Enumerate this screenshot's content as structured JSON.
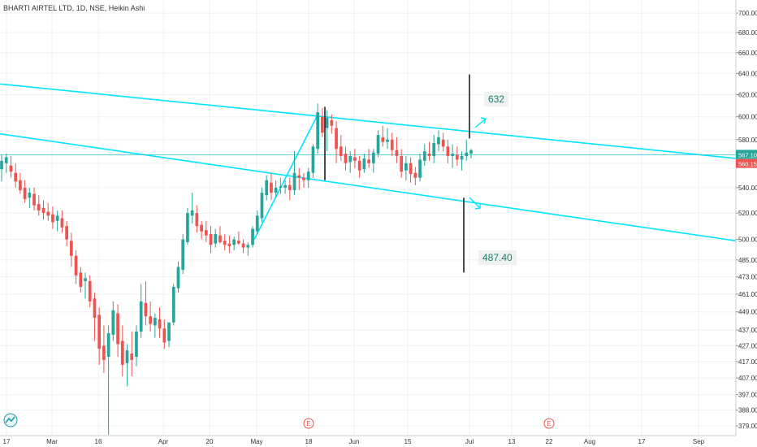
{
  "title": "BHARTI AIRTEL LTD, 1D, NSE, Heikin Ashi",
  "colors": {
    "up": "#26a69a",
    "down": "#ef5350",
    "channel": "#00e5ff",
    "price_line": "#26c6da",
    "marker": "#000000",
    "annotation_text": "#1c7d6b",
    "annotation_bg": "#eef2f0",
    "grid": "#eef1f4",
    "axis_text": "#333333",
    "price_badge": "#26a69a",
    "price_badge2": "#ef5350",
    "event_marker": "#ef5350"
  },
  "chart_data": {
    "type": "candlestick",
    "style": "Heikin Ashi",
    "title": "BHARTI AIRTEL LTD, 1D, NSE, Heikin Ashi",
    "y_ticks": [
      "700.00",
      "680.00",
      "660.00",
      "640.00",
      "620.00",
      "600.00",
      "580.00",
      "560.00",
      "540.00",
      "520.00",
      "500.00",
      "485.00",
      "473.00",
      "461.00",
      "449.00",
      "437.00",
      "427.00",
      "417.00",
      "407.00",
      "397.00",
      "388.00",
      "379.00"
    ],
    "y_scale": "log",
    "y_range": [
      374,
      712
    ],
    "x_ticks": [
      "17",
      "Mar",
      "16",
      "Apr",
      "20",
      "May",
      "18",
      "Jun",
      "15",
      "Jul",
      "13",
      "22",
      "Aug",
      "17",
      "Sep"
    ],
    "grid": true,
    "last_price": "567.10",
    "second_price": "560.15",
    "annotations": [
      {
        "text": "632",
        "type": "target-up"
      },
      {
        "text": "487.40",
        "type": "target-down"
      }
    ],
    "event_markers": [
      "E",
      "E"
    ],
    "channel": {
      "upper_line": {
        "start": [
          "start",
          630
        ],
        "end": [
          "end",
          564
        ]
      },
      "lower_line": {
        "start": [
          "start",
          585
        ],
        "end": [
          "end",
          499
        ]
      }
    },
    "candles": [
      {
        "o": 555,
        "h": 567,
        "l": 545,
        "c": 562
      },
      {
        "o": 560,
        "h": 568,
        "l": 552,
        "c": 565
      },
      {
        "o": 558,
        "h": 566,
        "l": 548,
        "c": 553
      },
      {
        "o": 552,
        "h": 560,
        "l": 540,
        "c": 545
      },
      {
        "o": 546,
        "h": 552,
        "l": 535,
        "c": 538
      },
      {
        "o": 540,
        "h": 546,
        "l": 528,
        "c": 531
      },
      {
        "o": 532,
        "h": 540,
        "l": 524,
        "c": 536
      },
      {
        "o": 535,
        "h": 540,
        "l": 522,
        "c": 526
      },
      {
        "o": 527,
        "h": 534,
        "l": 518,
        "c": 522
      },
      {
        "o": 524,
        "h": 530,
        "l": 515,
        "c": 520
      },
      {
        "o": 521,
        "h": 528,
        "l": 514,
        "c": 518
      },
      {
        "o": 519,
        "h": 525,
        "l": 508,
        "c": 513
      },
      {
        "o": 514,
        "h": 522,
        "l": 506,
        "c": 518
      },
      {
        "o": 516,
        "h": 522,
        "l": 505,
        "c": 509
      },
      {
        "o": 510,
        "h": 514,
        "l": 495,
        "c": 500
      },
      {
        "o": 499,
        "h": 505,
        "l": 480,
        "c": 488
      },
      {
        "o": 488,
        "h": 492,
        "l": 468,
        "c": 474
      },
      {
        "o": 476,
        "h": 480,
        "l": 462,
        "c": 466
      },
      {
        "o": 470,
        "h": 476,
        "l": 458,
        "c": 472
      },
      {
        "o": 470,
        "h": 474,
        "l": 452,
        "c": 456
      },
      {
        "o": 458,
        "h": 462,
        "l": 430,
        "c": 445
      },
      {
        "o": 447,
        "h": 452,
        "l": 415,
        "c": 425
      },
      {
        "o": 427,
        "h": 440,
        "l": 410,
        "c": 418
      },
      {
        "o": 420,
        "h": 440,
        "l": 374,
        "c": 435
      },
      {
        "o": 434,
        "h": 456,
        "l": 430,
        "c": 450
      },
      {
        "o": 448,
        "h": 454,
        "l": 420,
        "c": 428
      },
      {
        "o": 430,
        "h": 440,
        "l": 408,
        "c": 415
      },
      {
        "o": 416,
        "h": 428,
        "l": 402,
        "c": 424
      },
      {
        "o": 422,
        "h": 436,
        "l": 408,
        "c": 418
      },
      {
        "o": 420,
        "h": 440,
        "l": 414,
        "c": 436
      },
      {
        "o": 436,
        "h": 468,
        "l": 432,
        "c": 456
      },
      {
        "o": 455,
        "h": 470,
        "l": 440,
        "c": 446
      },
      {
        "o": 446,
        "h": 456,
        "l": 436,
        "c": 441
      },
      {
        "o": 440,
        "h": 448,
        "l": 432,
        "c": 445
      },
      {
        "o": 444,
        "h": 452,
        "l": 432,
        "c": 438
      },
      {
        "o": 438,
        "h": 444,
        "l": 425,
        "c": 429
      },
      {
        "o": 430,
        "h": 442,
        "l": 426,
        "c": 442
      },
      {
        "o": 442,
        "h": 468,
        "l": 440,
        "c": 466
      },
      {
        "o": 465,
        "h": 484,
        "l": 462,
        "c": 480
      },
      {
        "o": 478,
        "h": 504,
        "l": 475,
        "c": 500
      },
      {
        "o": 498,
        "h": 524,
        "l": 496,
        "c": 520
      },
      {
        "o": 518,
        "h": 536,
        "l": 512,
        "c": 522
      },
      {
        "o": 520,
        "h": 526,
        "l": 505,
        "c": 510
      },
      {
        "o": 511,
        "h": 514,
        "l": 500,
        "c": 506
      },
      {
        "o": 507,
        "h": 514,
        "l": 498,
        "c": 503
      },
      {
        "o": 504,
        "h": 510,
        "l": 490,
        "c": 496
      },
      {
        "o": 497,
        "h": 508,
        "l": 494,
        "c": 504
      },
      {
        "o": 503,
        "h": 510,
        "l": 497,
        "c": 498
      },
      {
        "o": 499,
        "h": 504,
        "l": 492,
        "c": 496
      },
      {
        "o": 497,
        "h": 503,
        "l": 490,
        "c": 495
      },
      {
        "o": 496,
        "h": 502,
        "l": 492,
        "c": 500
      },
      {
        "o": 499,
        "h": 506,
        "l": 496,
        "c": 497
      },
      {
        "o": 497,
        "h": 500,
        "l": 490,
        "c": 494
      },
      {
        "o": 494,
        "h": 498,
        "l": 488,
        "c": 496
      },
      {
        "o": 496,
        "h": 510,
        "l": 494,
        "c": 508
      },
      {
        "o": 506,
        "h": 522,
        "l": 504,
        "c": 518
      },
      {
        "o": 516,
        "h": 540,
        "l": 513,
        "c": 536
      },
      {
        "o": 534,
        "h": 550,
        "l": 530,
        "c": 546
      },
      {
        "o": 544,
        "h": 552,
        "l": 530,
        "c": 536
      },
      {
        "o": 536,
        "h": 546,
        "l": 532,
        "c": 540
      },
      {
        "o": 540,
        "h": 548,
        "l": 535,
        "c": 541
      },
      {
        "o": 540,
        "h": 546,
        "l": 535,
        "c": 542
      },
      {
        "o": 542,
        "h": 548,
        "l": 530,
        "c": 538
      },
      {
        "o": 538,
        "h": 570,
        "l": 534,
        "c": 552
      },
      {
        "o": 550,
        "h": 556,
        "l": 538,
        "c": 548
      },
      {
        "o": 548,
        "h": 552,
        "l": 540,
        "c": 546
      },
      {
        "o": 546,
        "h": 556,
        "l": 540,
        "c": 553
      },
      {
        "o": 552,
        "h": 576,
        "l": 548,
        "c": 574
      },
      {
        "o": 572,
        "h": 612,
        "l": 568,
        "c": 604
      },
      {
        "o": 600,
        "h": 608,
        "l": 582,
        "c": 586
      },
      {
        "o": 590,
        "h": 606,
        "l": 570,
        "c": 599
      },
      {
        "o": 597,
        "h": 602,
        "l": 585,
        "c": 592
      },
      {
        "o": 590,
        "h": 596,
        "l": 560,
        "c": 572
      },
      {
        "o": 574,
        "h": 584,
        "l": 562,
        "c": 566
      },
      {
        "o": 568,
        "h": 574,
        "l": 554,
        "c": 560
      },
      {
        "o": 561,
        "h": 570,
        "l": 552,
        "c": 566
      },
      {
        "o": 565,
        "h": 572,
        "l": 556,
        "c": 562
      },
      {
        "o": 562,
        "h": 566,
        "l": 548,
        "c": 554
      },
      {
        "o": 555,
        "h": 568,
        "l": 552,
        "c": 564
      },
      {
        "o": 563,
        "h": 572,
        "l": 556,
        "c": 560
      },
      {
        "o": 560,
        "h": 572,
        "l": 552,
        "c": 569
      },
      {
        "o": 568,
        "h": 588,
        "l": 565,
        "c": 584
      },
      {
        "o": 582,
        "h": 592,
        "l": 574,
        "c": 578
      },
      {
        "o": 578,
        "h": 590,
        "l": 572,
        "c": 580
      },
      {
        "o": 580,
        "h": 586,
        "l": 566,
        "c": 571
      },
      {
        "o": 571,
        "h": 582,
        "l": 560,
        "c": 566
      },
      {
        "o": 566,
        "h": 572,
        "l": 548,
        "c": 553
      },
      {
        "o": 554,
        "h": 566,
        "l": 546,
        "c": 560
      },
      {
        "o": 560,
        "h": 565,
        "l": 544,
        "c": 551
      },
      {
        "o": 552,
        "h": 557,
        "l": 542,
        "c": 548
      },
      {
        "o": 548,
        "h": 568,
        "l": 545,
        "c": 563
      },
      {
        "o": 562,
        "h": 576,
        "l": 558,
        "c": 570
      },
      {
        "o": 568,
        "h": 578,
        "l": 562,
        "c": 566
      },
      {
        "o": 566,
        "h": 584,
        "l": 560,
        "c": 577
      },
      {
        "o": 576,
        "h": 588,
        "l": 570,
        "c": 582
      },
      {
        "o": 580,
        "h": 586,
        "l": 570,
        "c": 574
      },
      {
        "o": 574,
        "h": 580,
        "l": 560,
        "c": 566
      },
      {
        "o": 566,
        "h": 576,
        "l": 556,
        "c": 568
      },
      {
        "o": 567,
        "h": 574,
        "l": 558,
        "c": 563
      },
      {
        "o": 563,
        "h": 570,
        "l": 554,
        "c": 566
      },
      {
        "o": 566,
        "h": 580,
        "l": 562,
        "c": 569
      },
      {
        "o": 568,
        "h": 572,
        "l": 564,
        "c": 571
      }
    ]
  }
}
